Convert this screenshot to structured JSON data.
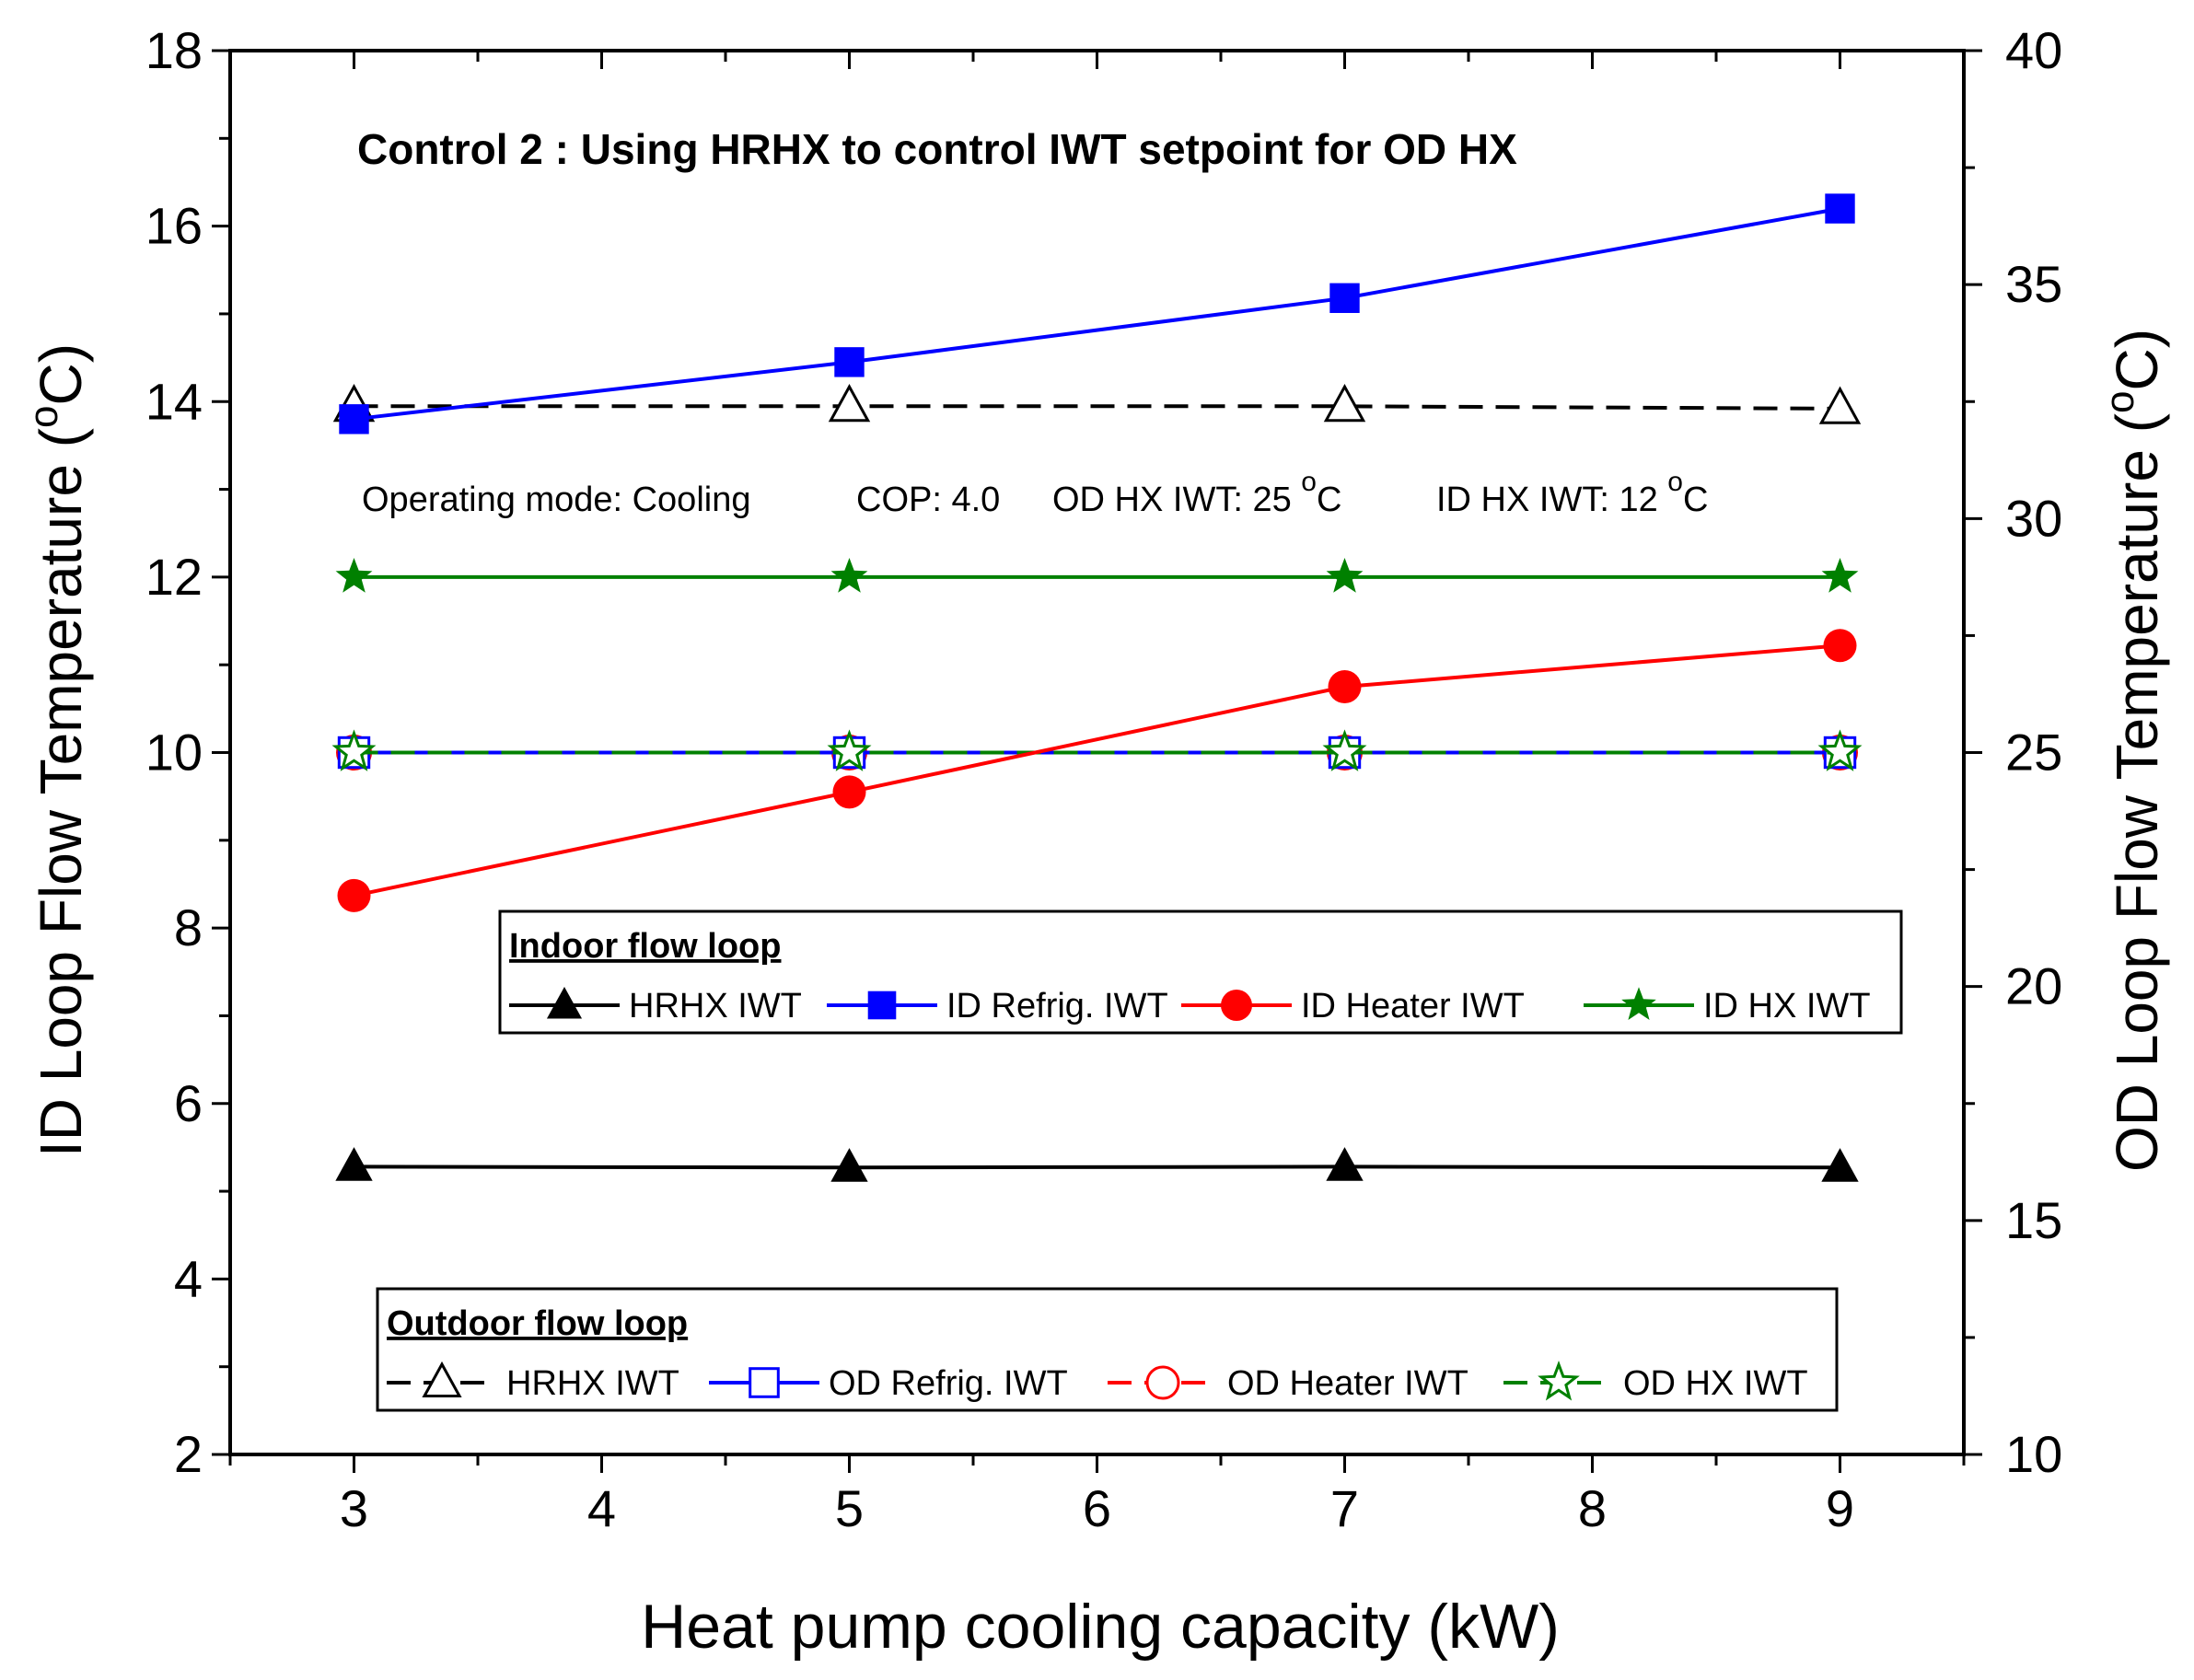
{
  "chart_data": {
    "type": "line",
    "title": "Control 2 : Using HRHX to control IWT setpoint for OD HX",
    "subtitle": {
      "mode": "Operating mode: Cooling",
      "cop": "COP: 4.0",
      "od_prefix": "OD HX IWT: 25 ",
      "id_prefix": "ID HX IWT: 12 ",
      "deg": "o",
      "unit": "C"
    },
    "xlabel": "Heat pump cooling capacity (kW)",
    "ylabel": {
      "prefix": "ID Loop Flow Temperature (",
      "deg": "o",
      "suffix": "C)"
    },
    "y2label": {
      "prefix": "OD Loop Flow Temperature (",
      "deg": "o",
      "suffix": "C)"
    },
    "xlim": [
      2.5,
      9.5
    ],
    "ylim": [
      2,
      18
    ],
    "y2lim": [
      10,
      40
    ],
    "x": [
      3,
      5,
      7,
      9
    ],
    "xticks": [
      "3",
      "4",
      "5",
      "6",
      "7",
      "8",
      "9"
    ],
    "yticks": [
      "2",
      "4",
      "6",
      "8",
      "10",
      "12",
      "14",
      "16",
      "18"
    ],
    "y2ticks": [
      "10",
      "15",
      "20",
      "25",
      "30",
      "35",
      "40"
    ],
    "series": [
      {
        "name": "HRHX IWT",
        "group": "indoor",
        "axis": "left",
        "values": [
          5.28,
          5.27,
          5.28,
          5.27
        ],
        "color": "#000000",
        "marker": "triangle",
        "filled": true,
        "dash": false
      },
      {
        "name": "ID Refrig. IWT",
        "group": "indoor",
        "axis": "left",
        "values": [
          13.8,
          14.45,
          15.18,
          16.2
        ],
        "color": "#0000ff",
        "marker": "square",
        "filled": true,
        "dash": false
      },
      {
        "name": "ID Heater IWT",
        "group": "indoor",
        "axis": "left",
        "values": [
          8.37,
          9.55,
          10.75,
          11.22
        ],
        "color": "#ff0000",
        "marker": "circle",
        "filled": true,
        "dash": false
      },
      {
        "name": "ID HX IWT",
        "group": "indoor",
        "axis": "left",
        "values": [
          12.0,
          12.0,
          12.0,
          12.0
        ],
        "color": "#008000",
        "marker": "star",
        "filled": true,
        "dash": false
      },
      {
        "name": "HRHX IWT",
        "group": "outdoor",
        "axis": "right",
        "values": [
          32.4,
          32.4,
          32.4,
          32.35
        ],
        "color": "#000000",
        "marker": "triangle",
        "filled": false,
        "dash": true
      },
      {
        "name": "OD Refrig. IWT",
        "group": "outdoor",
        "axis": "right",
        "values": [
          25.0,
          25.0,
          25.0,
          25.0
        ],
        "color": "#0000ff",
        "marker": "square",
        "filled": false,
        "dash": false
      },
      {
        "name": "OD Heater IWT",
        "group": "outdoor",
        "axis": "right",
        "values": [
          25.0,
          25.0,
          25.0,
          25.0
        ],
        "color": "#ff0000",
        "marker": "circle",
        "filled": false,
        "dash": true
      },
      {
        "name": "OD HX IWT",
        "group": "outdoor",
        "axis": "right",
        "values": [
          25.0,
          25.0,
          25.0,
          25.0
        ],
        "color": "#008000",
        "marker": "star",
        "filled": false,
        "dash": true
      }
    ],
    "legends": [
      {
        "title": "Indoor flow loop",
        "group": "indoor"
      },
      {
        "title": "Outdoor flow loop",
        "group": "outdoor"
      }
    ]
  }
}
